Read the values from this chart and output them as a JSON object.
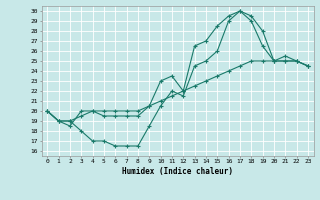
{
  "background_color": "#c8e8e8",
  "grid_color": "#ffffff",
  "line_color": "#1a7a6a",
  "xlabel": "Humidex (Indice chaleur)",
  "xlim": [
    -0.5,
    23.5
  ],
  "ylim": [
    15.5,
    30.5
  ],
  "yticks": [
    16,
    17,
    18,
    19,
    20,
    21,
    22,
    23,
    24,
    25,
    26,
    27,
    28,
    29,
    30
  ],
  "xticks": [
    0,
    1,
    2,
    3,
    4,
    5,
    6,
    7,
    8,
    9,
    10,
    11,
    12,
    13,
    14,
    15,
    16,
    17,
    18,
    19,
    20,
    21,
    22,
    23
  ],
  "line1_x": [
    0,
    1,
    2,
    3,
    4,
    5,
    6,
    7,
    8,
    9,
    10,
    11,
    12,
    13,
    14,
    15,
    16,
    17,
    18,
    19,
    20,
    21,
    22,
    23
  ],
  "line1_y": [
    20,
    19,
    19,
    18,
    17,
    17,
    16.5,
    16.5,
    16.5,
    18.5,
    20.5,
    22,
    21.5,
    24.5,
    25,
    26,
    29,
    30,
    29.5,
    28,
    25,
    25,
    25,
    24.5
  ],
  "line2_x": [
    0,
    1,
    2,
    3,
    4,
    5,
    6,
    7,
    8,
    9,
    10,
    11,
    12,
    13,
    14,
    15,
    16,
    17,
    18,
    19,
    20,
    21,
    22,
    23
  ],
  "line2_y": [
    20,
    19,
    18.5,
    20,
    20,
    19.5,
    19.5,
    19.5,
    19.5,
    20.5,
    23,
    23.5,
    22,
    26.5,
    27,
    28.5,
    29.5,
    30,
    29,
    26.5,
    25,
    25.5,
    25,
    24.5
  ],
  "line3_x": [
    0,
    1,
    2,
    3,
    4,
    5,
    6,
    7,
    8,
    9,
    10,
    11,
    12,
    13,
    14,
    15,
    16,
    17,
    18,
    19,
    20,
    21,
    22,
    23
  ],
  "line3_y": [
    20,
    19,
    19,
    19.5,
    20,
    20,
    20,
    20,
    20,
    20.5,
    21,
    21.5,
    22,
    22.5,
    23,
    23.5,
    24,
    24.5,
    25,
    25,
    25,
    25,
    25,
    24.5
  ],
  "tick_fontsize": 4.5,
  "xlabel_fontsize": 5.5,
  "linewidth": 0.8,
  "markersize": 3.5,
  "markeredgewidth": 0.8
}
